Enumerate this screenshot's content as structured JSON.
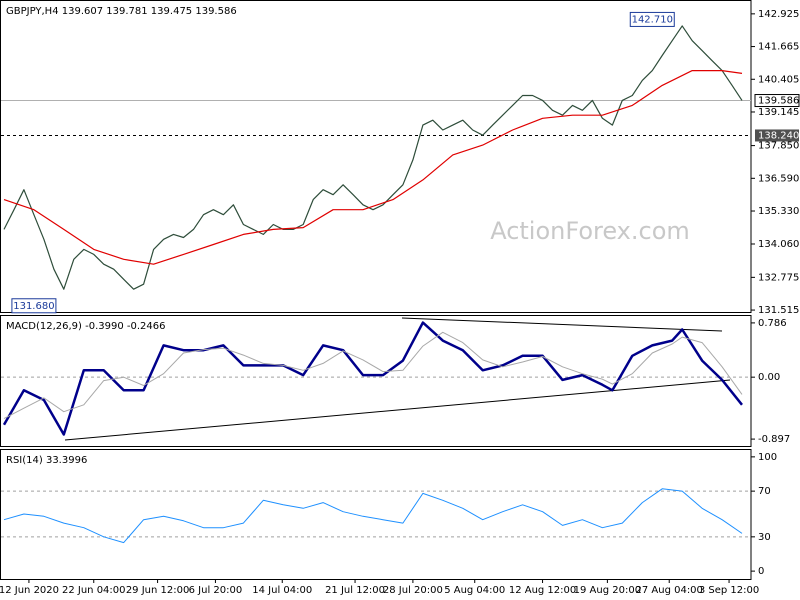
{
  "chart_data": [
    {
      "type": "line",
      "title": "GBPJPY,H4 139.607 139.781 139.475 139.586",
      "watermark": "ActionForex.com",
      "xlim": [
        -0.3,
        74.9
      ],
      "ylim": [
        131.44,
        143.42
      ],
      "yticks": [
        142.925,
        141.665,
        140.405,
        {
          "value": 139.145,
          "label": "139.145"
        },
        {
          "value": 137.85,
          "label": "137.850"
        },
        {
          "value": 136.59,
          "label": "136.590"
        },
        {
          "value": 135.33,
          "label": "135.330"
        },
        {
          "value": 134.06,
          "label": "134.060"
        },
        132.775,
        131.515
      ],
      "series": [
        {
          "color": "#2e4d3a",
          "x": [
            0,
            1,
            2,
            3,
            4,
            5,
            6,
            7,
            8,
            9,
            10,
            11,
            12,
            13,
            14,
            15,
            16,
            17,
            18,
            19,
            20,
            21,
            22,
            23,
            24,
            25,
            26,
            27,
            28,
            29,
            30,
            31,
            32,
            33,
            34,
            35,
            36,
            37,
            38,
            39,
            40,
            41,
            42,
            43,
            44,
            45,
            46,
            47,
            48,
            49,
            50,
            51,
            52,
            53,
            54,
            55,
            56,
            57,
            58,
            59,
            60,
            61,
            62,
            63,
            64,
            65,
            66,
            67,
            68,
            69,
            70,
            71,
            72,
            73,
            74
          ],
          "values": [
            134.62,
            135.38,
            136.15,
            135.19,
            134.24,
            133.09,
            132.32,
            133.47,
            133.85,
            133.66,
            133.28,
            133.09,
            132.7,
            132.32,
            132.51,
            133.85,
            134.24,
            134.43,
            134.31,
            134.62,
            135.19,
            135.38,
            135.19,
            135.57,
            134.81,
            134.62,
            134.43,
            134.81,
            134.62,
            134.62,
            134.81,
            135.77,
            136.15,
            135.96,
            136.34,
            135.96,
            135.57,
            135.38,
            135.57,
            135.96,
            136.34,
            137.3,
            138.64,
            138.83,
            138.45,
            138.64,
            138.83,
            138.45,
            138.25,
            138.64,
            139.02,
            139.4,
            139.78,
            139.78,
            139.59,
            139.21,
            139.02,
            139.4,
            139.21,
            139.59,
            138.9,
            138.64,
            139.59,
            139.78,
            140.36,
            140.74,
            141.32,
            141.89,
            142.46,
            141.89,
            141.51,
            141.12,
            140.74,
            140.17,
            139.59
          ]
        },
        {
          "color": "#e00000",
          "x": [
            0,
            3,
            6,
            9,
            12,
            15,
            18,
            21,
            24,
            27,
            30,
            33,
            36,
            39,
            42,
            45,
            48,
            51,
            54,
            57,
            60,
            63,
            66,
            69,
            72,
            74
          ],
          "values": [
            135.77,
            135.38,
            134.62,
            133.85,
            133.47,
            133.28,
            133.66,
            134.04,
            134.43,
            134.62,
            134.69,
            135.38,
            135.38,
            135.77,
            136.53,
            137.49,
            137.87,
            138.45,
            138.9,
            139.02,
            139.02,
            139.4,
            140.17,
            140.74,
            140.74,
            140.63
          ]
        }
      ],
      "current_price": 139.586,
      "support_level": {
        "value": 138.24,
        "label": "138.240"
      },
      "high_label": {
        "x": 65,
        "value": 142.71,
        "label": "142.710"
      },
      "low_label": {
        "x": 3,
        "value": 131.68,
        "label": "131.680"
      }
    },
    {
      "type": "line",
      "title": "MACD(12,26,9) -0.3990 -0.2466",
      "xlim": [
        -0.3,
        74.9
      ],
      "ylim": [
        -0.997,
        0.886
      ],
      "yticks": [
        0.786,
        {
          "value": 0,
          "label": "0.00"
        },
        -0.897
      ],
      "reference_lines": [
        0
      ],
      "series": [
        {
          "color": "#00008b",
          "width": 2.5,
          "x": [
            0,
            2,
            4,
            6,
            8,
            10,
            12,
            14,
            16,
            18,
            20,
            22,
            24,
            26,
            28,
            30,
            32,
            34,
            36,
            38,
            40,
            42,
            44,
            46,
            48,
            50,
            52,
            54,
            56,
            58,
            60,
            61,
            63,
            65,
            67,
            68,
            70,
            72,
            74
          ],
          "values": [
            -0.69,
            -0.19,
            -0.33,
            -0.83,
            0.1,
            0.1,
            -0.19,
            -0.19,
            0.46,
            0.39,
            0.39,
            0.46,
            0.17,
            0.17,
            0.17,
            0.03,
            0.46,
            0.39,
            0.03,
            0.03,
            0.24,
            0.79,
            0.53,
            0.39,
            0.1,
            0.17,
            0.31,
            0.31,
            -0.04,
            0.03,
            -0.11,
            -0.19,
            0.31,
            0.46,
            0.53,
            0.69,
            0.24,
            -0.04,
            -0.4
          ]
        },
        {
          "color": "#a8a8a8",
          "width": 1,
          "x": [
            0,
            2,
            4,
            6,
            8,
            10,
            12,
            14,
            16,
            18,
            20,
            22,
            24,
            26,
            28,
            30,
            32,
            34,
            36,
            38,
            40,
            42,
            44,
            46,
            48,
            50,
            52,
            54,
            56,
            58,
            60,
            61,
            63,
            65,
            67,
            68,
            70,
            72,
            74
          ],
          "values": [
            -0.6,
            -0.45,
            -0.3,
            -0.5,
            -0.4,
            -0.05,
            0.0,
            -0.12,
            0.05,
            0.35,
            0.4,
            0.42,
            0.32,
            0.2,
            0.17,
            0.1,
            0.2,
            0.38,
            0.25,
            0.08,
            0.1,
            0.45,
            0.65,
            0.5,
            0.25,
            0.15,
            0.22,
            0.3,
            0.15,
            0.05,
            -0.03,
            -0.1,
            0.05,
            0.35,
            0.48,
            0.58,
            0.5,
            0.15,
            -0.25
          ]
        }
      ]
    },
    {
      "type": "line",
      "title": "RSI(14) 33.3996",
      "xlim": [
        -0.3,
        74.9
      ],
      "ylim": [
        -6.9,
        106
      ],
      "yticks": [
        100,
        70,
        30,
        0
      ],
      "reference_lines": [
        70,
        30
      ],
      "xticks": [
        {
          "value": 2.5,
          "label": "12 Jun 2020"
        },
        {
          "value": 9,
          "label": "22 Jun 04:00"
        },
        {
          "value": 15.4,
          "label": "29 Jun 12:00"
        },
        {
          "value": 21.2,
          "label": "6 Jul 20:00"
        },
        {
          "value": 27.9,
          "label": "14 Jul 04:00"
        },
        {
          "value": 35.2,
          "label": "21 Jul 12:00"
        },
        {
          "value": 41,
          "label": "28 Jul 20:00"
        },
        {
          "value": 47.2,
          "label": "5 Aug 04:00"
        },
        {
          "value": 54,
          "label": "12 Aug 12:00"
        },
        {
          "value": 60.5,
          "label": "19 Aug 20:00"
        },
        {
          "value": 66.7,
          "label": "27 Aug 04:00"
        },
        {
          "value": 72.7,
          "label": "3 Sep 12:00"
        }
      ],
      "series": [
        {
          "color": "#1e90ff",
          "width": 1,
          "x": [
            0,
            2,
            4,
            6,
            8,
            10,
            12,
            14,
            16,
            18,
            20,
            22,
            24,
            26,
            28,
            30,
            32,
            34,
            36,
            38,
            40,
            42,
            44,
            46,
            48,
            50,
            52,
            54,
            56,
            58,
            60,
            62,
            64,
            66,
            68,
            70,
            72,
            74
          ],
          "values": [
            45,
            50,
            48,
            42,
            38,
            30,
            25,
            45,
            48,
            44,
            38,
            38,
            42,
            62,
            58,
            55,
            60,
            52,
            48,
            45,
            42,
            68,
            62,
            55,
            45,
            52,
            58,
            52,
            40,
            45,
            38,
            42,
            60,
            72,
            70,
            55,
            45,
            33
          ]
        }
      ]
    }
  ]
}
